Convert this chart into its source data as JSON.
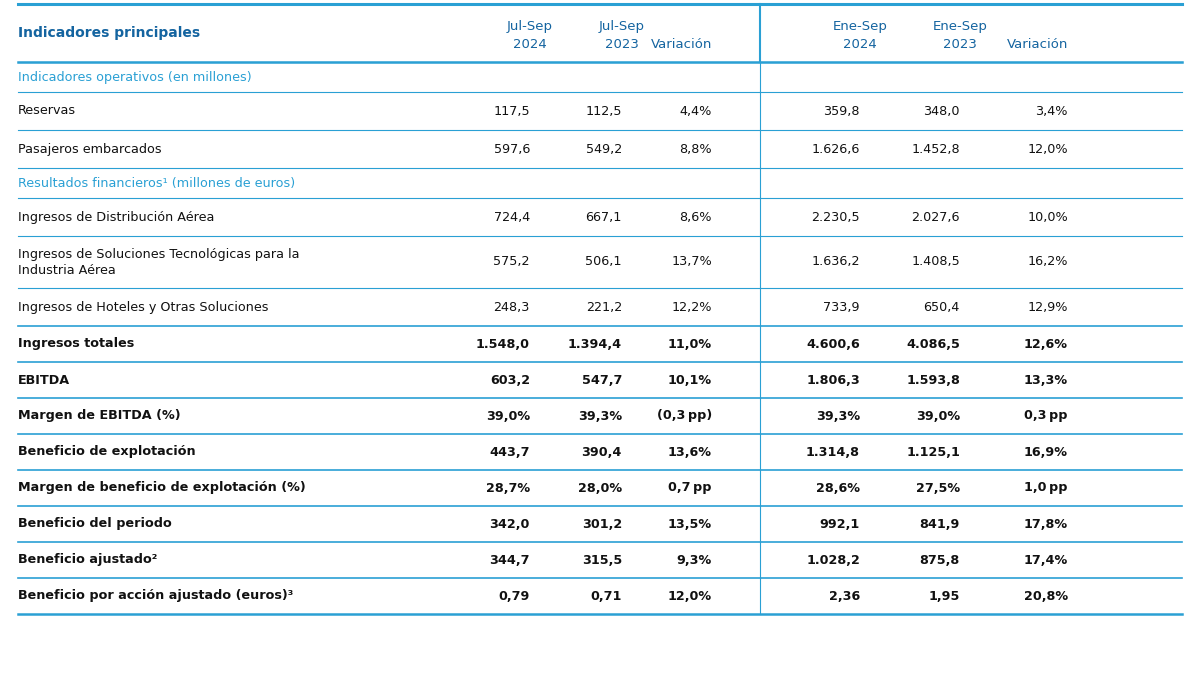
{
  "title_col": "Indicadores principales",
  "col_headers_line1": [
    "Jul-Sep",
    "Jul-Sep",
    "",
    "Ene-Sep",
    "Ene-Sep",
    ""
  ],
  "col_headers_line2": [
    "2024",
    "2023",
    "Variación",
    "2024",
    "2023",
    "Variación"
  ],
  "rows": [
    {
      "label": "Indicadores operativos (en millones)",
      "type": "section",
      "values": [
        "",
        "",
        "",
        "",
        "",
        ""
      ]
    },
    {
      "label": "Reservas",
      "bold": false,
      "values": [
        "117,5",
        "112,5",
        "4,4%",
        "359,8",
        "348,0",
        "3,4%"
      ]
    },
    {
      "label": "Pasajeros embarcados",
      "bold": false,
      "values": [
        "597,6",
        "549,2",
        "8,8%",
        "1.626,6",
        "1.452,8",
        "12,0%"
      ]
    },
    {
      "label": "Resultados financieros¹ (millones de euros)",
      "type": "section",
      "values": [
        "",
        "",
        "",
        "",
        "",
        ""
      ]
    },
    {
      "label": "Ingresos de Distribución Aérea",
      "bold": false,
      "values": [
        "724,4",
        "667,1",
        "8,6%",
        "2.230,5",
        "2.027,6",
        "10,0%"
      ]
    },
    {
      "label": "Ingresos de Soluciones Tecnológicas para la\nIndustria Aérea",
      "bold": false,
      "values": [
        "575,2",
        "506,1",
        "13,7%",
        "1.636,2",
        "1.408,5",
        "16,2%"
      ]
    },
    {
      "label": "Ingresos de Hoteles y Otras Soluciones",
      "bold": false,
      "values": [
        "248,3",
        "221,2",
        "12,2%",
        "733,9",
        "650,4",
        "12,9%"
      ]
    },
    {
      "label": "Ingresos totales",
      "bold": true,
      "values": [
        "1.548,0",
        "1.394,4",
        "11,0%",
        "4.600,6",
        "4.086,5",
        "12,6%"
      ]
    },
    {
      "label": "EBITDA",
      "bold": true,
      "values": [
        "603,2",
        "547,7",
        "10,1%",
        "1.806,3",
        "1.593,8",
        "13,3%"
      ]
    },
    {
      "label": "Margen de EBITDA (%)",
      "bold": true,
      "values": [
        "39,0%",
        "39,3%",
        "(0,3 pp)",
        "39,3%",
        "39,0%",
        "0,3 pp"
      ]
    },
    {
      "label": "Beneficio de explotación",
      "bold": true,
      "values": [
        "443,7",
        "390,4",
        "13,6%",
        "1.314,8",
        "1.125,1",
        "16,9%"
      ]
    },
    {
      "label": "Margen de beneficio de explotación (%)",
      "bold": true,
      "values": [
        "28,7%",
        "28,0%",
        "0,7 pp",
        "28,6%",
        "27,5%",
        "1,0 pp"
      ]
    },
    {
      "label": "Beneficio del periodo",
      "bold": true,
      "values": [
        "342,0",
        "301,2",
        "13,5%",
        "992,1",
        "841,9",
        "17,8%"
      ]
    },
    {
      "label": "Beneficio ajustado²",
      "bold": true,
      "values": [
        "344,7",
        "315,5",
        "9,3%",
        "1.028,2",
        "875,8",
        "17,4%"
      ]
    },
    {
      "label": "Beneficio por acción ajustado (euros)³",
      "bold": true,
      "values": [
        "0,79",
        "0,71",
        "12,0%",
        "2,36",
        "1,95",
        "20,8%"
      ]
    }
  ],
  "header_color": "#1464a0",
  "section_color": "#2aa0d4",
  "divider_color": "#2aa0d4",
  "text_color": "#111111",
  "bg_color": "#ffffff"
}
